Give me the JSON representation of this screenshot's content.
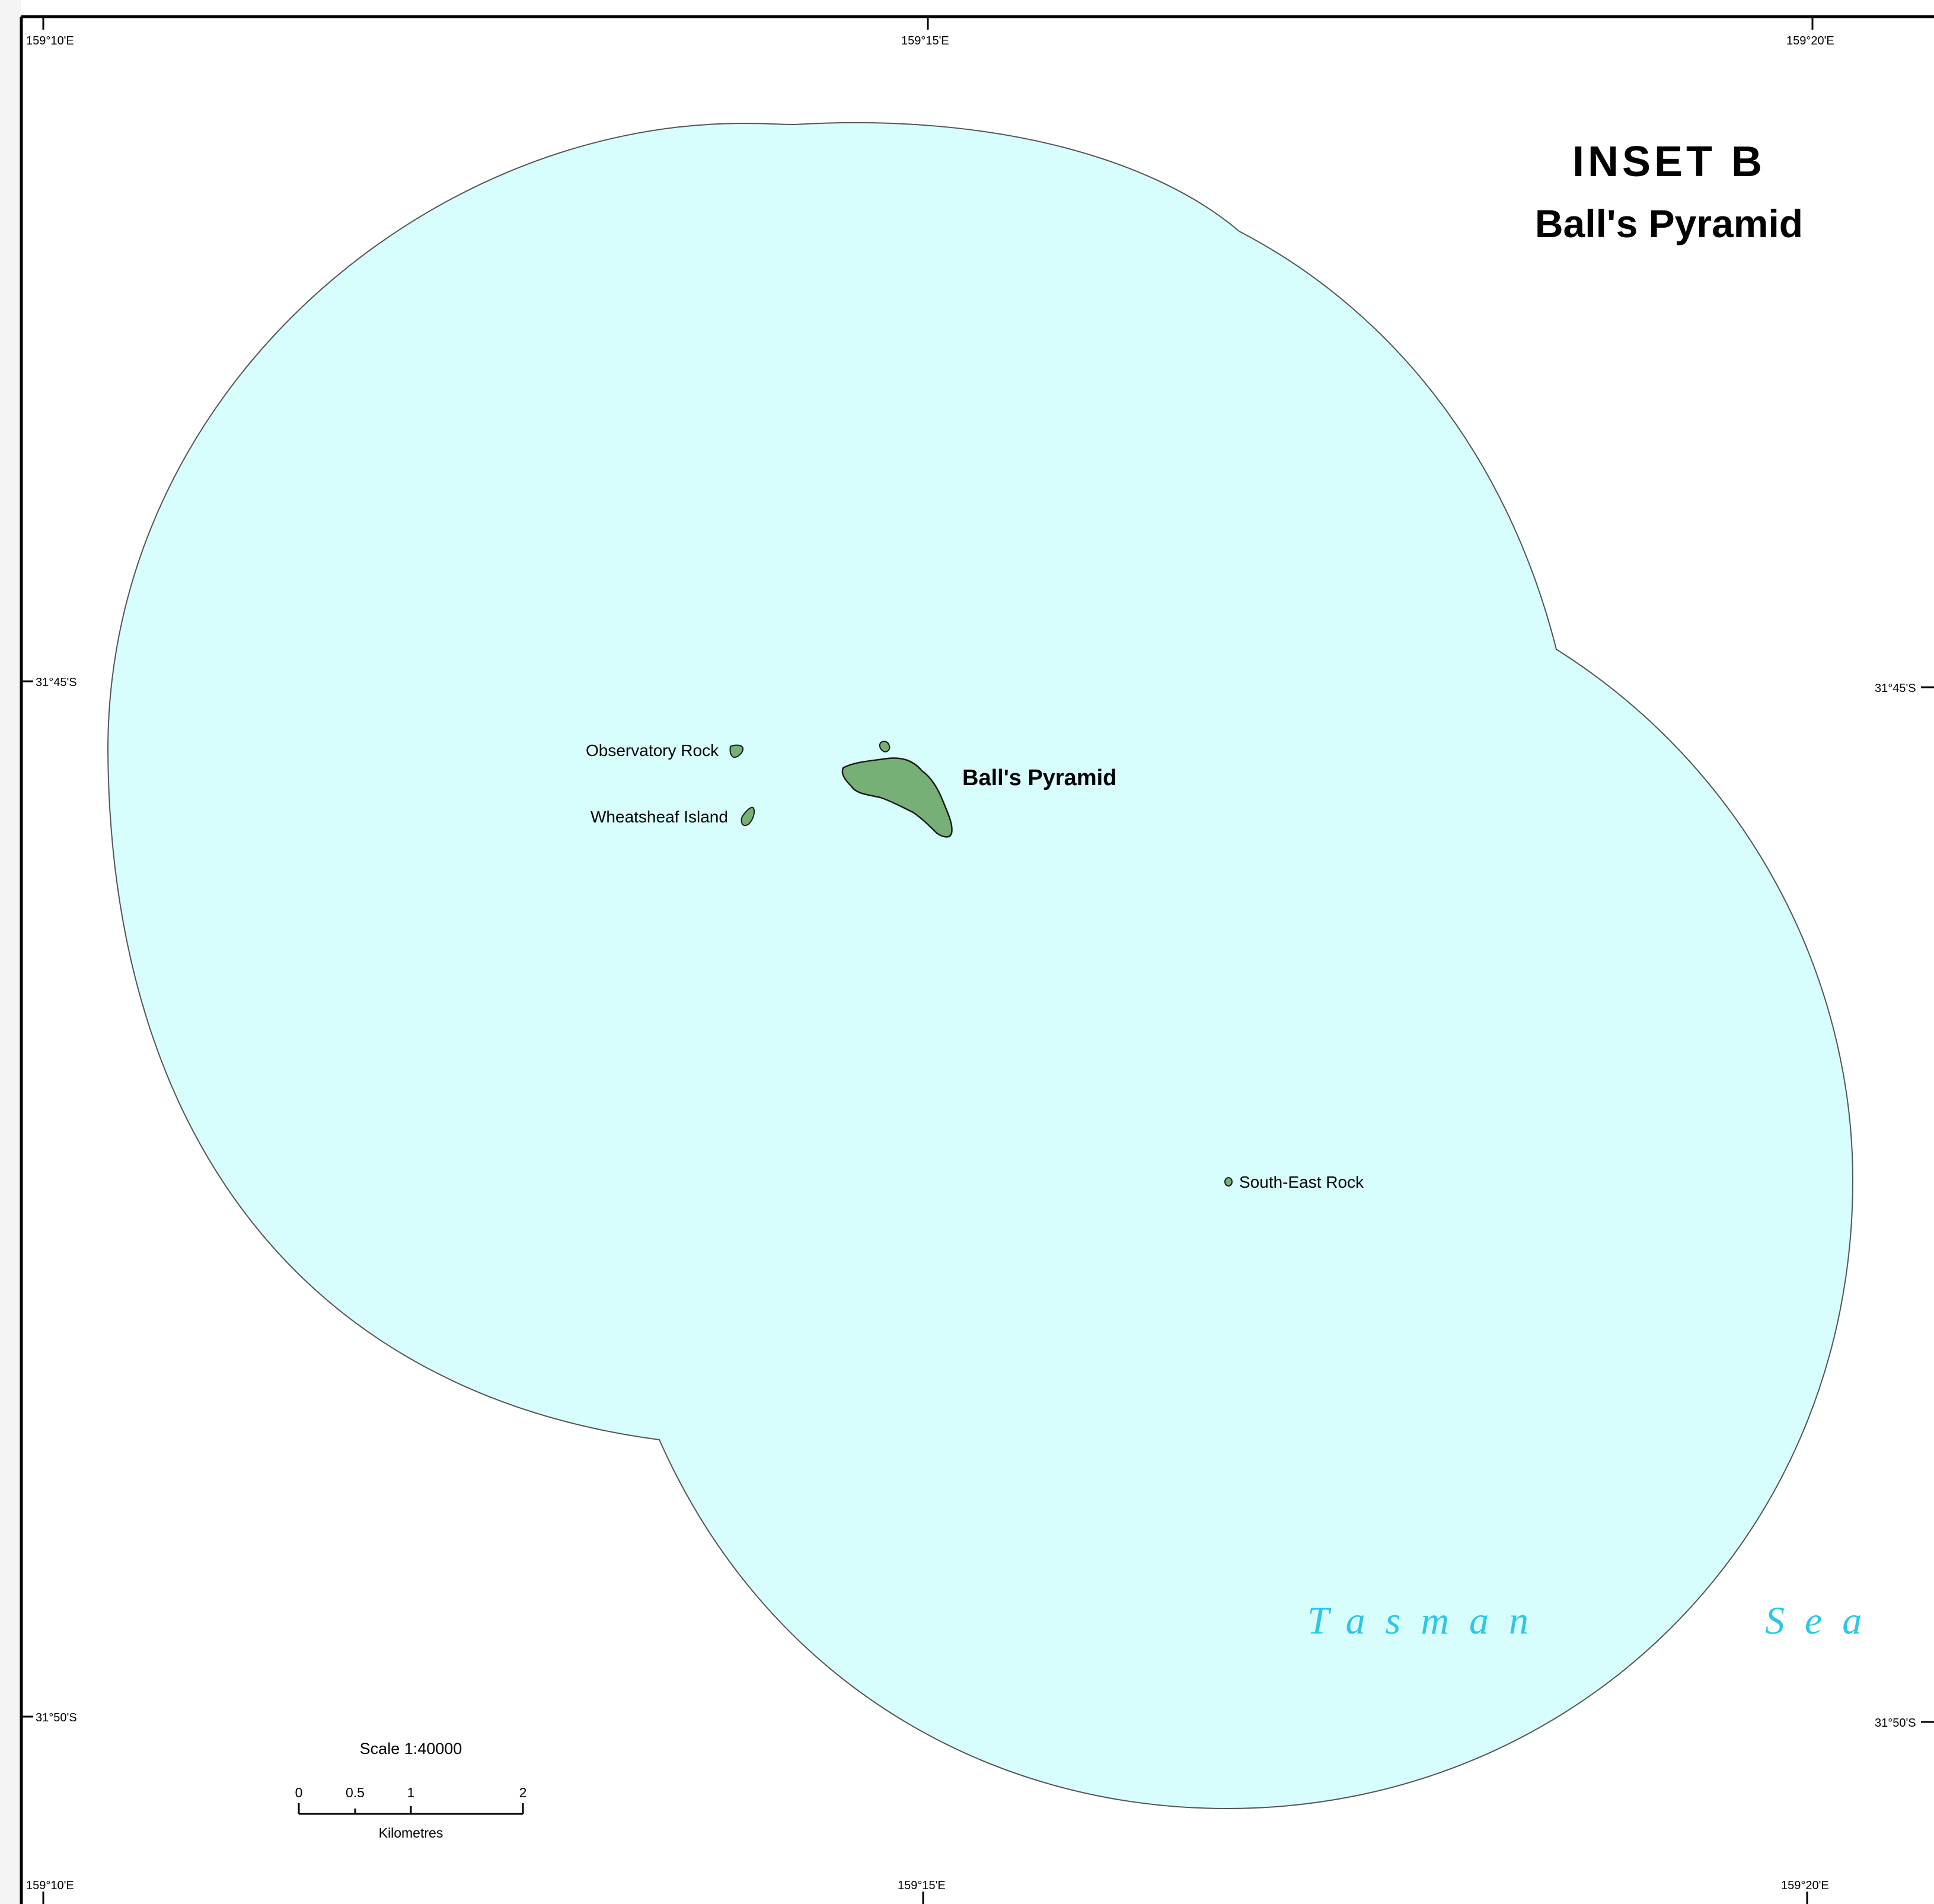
{
  "inset": {
    "title": "INSET B",
    "subtitle": "Ball's Pyramid"
  },
  "graticule": {
    "longitude_labels": [
      "159°10'E",
      "159°15'E",
      "159°20'E"
    ],
    "latitude_labels": [
      "31°45'S",
      "31°50'S"
    ]
  },
  "features": {
    "balls_pyramid": "Ball's Pyramid",
    "observatory_rock": "Observatory Rock",
    "wheatsheaf_island": "Wheatsheaf Island",
    "south_east_rock": "South-East Rock",
    "sea_words": [
      "Tasman",
      "Sea"
    ]
  },
  "scale_bar": {
    "label": "Scale  1:40000",
    "ticks": [
      "0",
      "0.5",
      "1",
      "2"
    ],
    "units": "Kilometres"
  },
  "colors": {
    "water": "#d7fdfd",
    "water_outline": "#555555",
    "land": "#77b077",
    "land_outline": "#1a1a1a",
    "sea_label": "#2fc6e6",
    "frame": "#000000",
    "margin": "#f4f4f4"
  }
}
